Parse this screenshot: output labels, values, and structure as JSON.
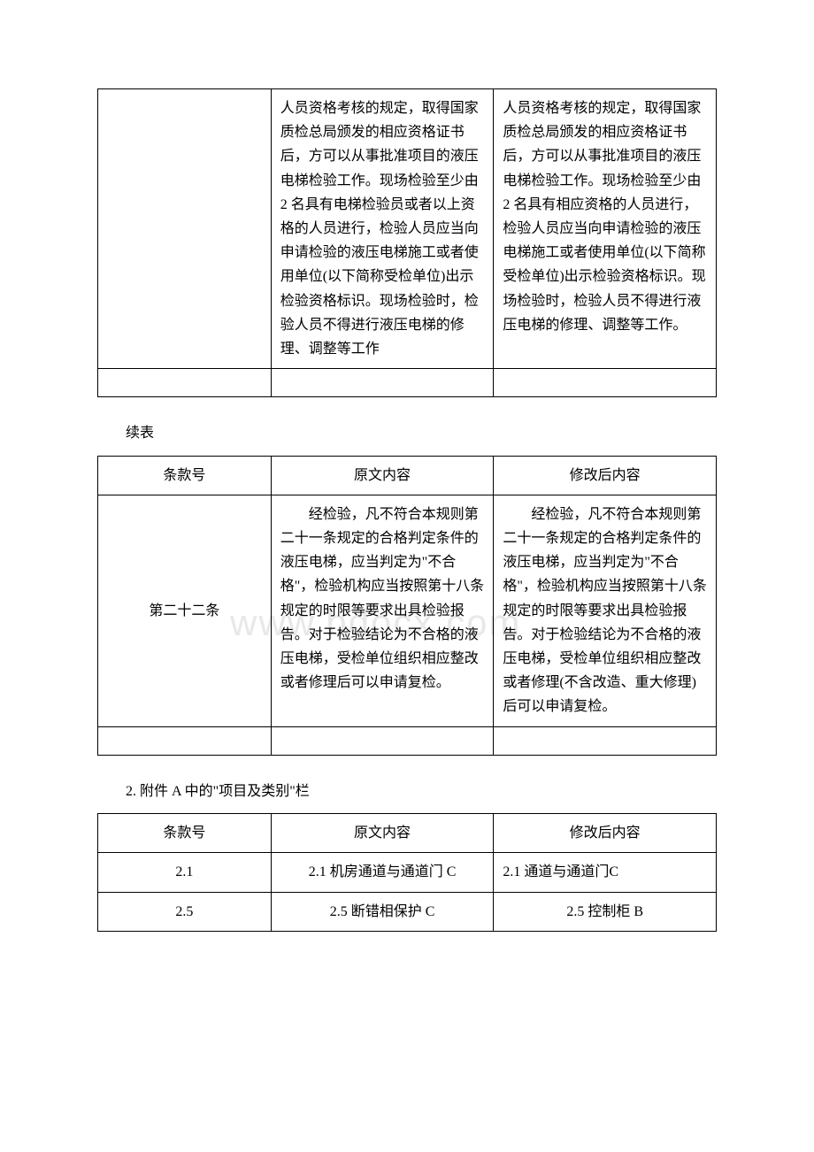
{
  "watermark": "www.bdocx.com",
  "table1": {
    "rows": [
      {
        "c1": "",
        "c2": "人员资格考核的规定，取得国家质检总局颁发的相应资格证书后，方可以从事批准项目的液压电梯检验工作。现场检验至少由 2 名具有电梯检验员或者以上资格的人员进行，检验人员应当向申请检验的液压电梯施工或者使用单位(以下简称受检单位)出示检验资格标识。现场检验时，检验人员不得进行液压电梯的修理、调整等工作",
        "c3": "人员资格考核的规定，取得国家质检总局颁发的相应资格证书后，方可以从事批准项目的液压电梯检验工作。现场检验至少由 2 名具有相应资格的人员进行，检验人员应当向申请检验的液压电梯施工或者使用单位(以下简称受检单位)出示检验资格标识。现场检验时，检验人员不得进行液压电梯的修理、调整等工作。"
      }
    ]
  },
  "continued_label": "续表",
  "table2": {
    "header": {
      "c1": "条款号",
      "c2": "原文内容",
      "c3": "修改后内容"
    },
    "rows": [
      {
        "c1": "第二十二条",
        "c2": "经检验，凡不符合本规则第二十一条规定的合格判定条件的液压电梯，应当判定为\"不合格\"，检验机构应当按照第十八条规定的时限等要求出具检验报告。对于检验结论为不合格的液压电梯，受检单位组织相应整改或者修理后可以申请复检。",
        "c3": "经检验，凡不符合本规则第二十一条规定的合格判定条件的液压电梯，应当判定为\"不合格\"，检验机构应当按照第十八条规定的时限等要求出具检验报告。对于检验结论为不合格的液压电梯，受检单位组织相应整改或者修理(不含改造、重大修理)后可以申请复检。"
      }
    ]
  },
  "section2_label": "2. 附件 A 中的\"项目及类别\"栏",
  "table3": {
    "header": {
      "c1": "条款号",
      "c2": "原文内容",
      "c3": "修改后内容"
    },
    "rows": [
      {
        "c1": "2.1",
        "c2": "2.1 机房通道与通道门 C",
        "c3": "2.1 通道与通道门C"
      },
      {
        "c1": "2.5",
        "c2": "2.5 断错相保护 C",
        "c3": "2.5 控制柜 B"
      }
    ]
  }
}
